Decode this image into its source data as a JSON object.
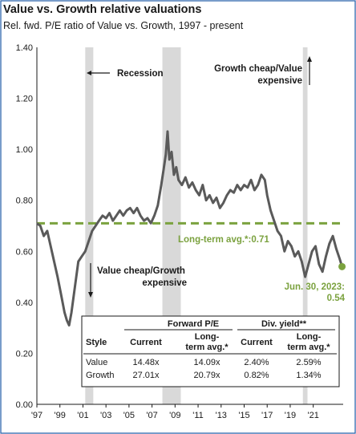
{
  "chart_data": {
    "type": "line",
    "title": "Value vs. Growth relative valuations",
    "subtitle": "Rel. fwd. P/E ratio of Value vs. Growth, 1997 - present",
    "ylim": [
      0,
      1.4
    ],
    "yticks": [
      "0.00",
      "0.20",
      "0.40",
      "0.60",
      "0.80",
      "1.00",
      "1.20",
      "1.40"
    ],
    "xlim": [
      1997,
      2023.6
    ],
    "xticks": [
      {
        "year": 1997,
        "label": "'97"
      },
      {
        "year": 1999,
        "label": "'99"
      },
      {
        "year": 2001,
        "label": "'01"
      },
      {
        "year": 2003,
        "label": "'03"
      },
      {
        "year": 2005,
        "label": "'05"
      },
      {
        "year": 2007,
        "label": "'07"
      },
      {
        "year": 2009,
        "label": "'09"
      },
      {
        "year": 2011,
        "label": "'11"
      },
      {
        "year": 2013,
        "label": "'13"
      },
      {
        "year": 2015,
        "label": "'15"
      },
      {
        "year": 2017,
        "label": "'17"
      },
      {
        "year": 2019,
        "label": "'19"
      },
      {
        "year": 2021,
        "label": "'21"
      }
    ],
    "recessions": [
      [
        2001.2,
        2001.9
      ],
      [
        2007.9,
        2009.5
      ],
      [
        2020.1,
        2020.5
      ]
    ],
    "series": [
      {
        "values": [
          [
            1997.0,
            0.71
          ],
          [
            1997.3,
            0.7
          ],
          [
            1997.6,
            0.66
          ],
          [
            1997.9,
            0.68
          ],
          [
            1998.2,
            0.62
          ],
          [
            1998.5,
            0.56
          ],
          [
            1998.8,
            0.5
          ],
          [
            1999.1,
            0.43
          ],
          [
            1999.4,
            0.36
          ],
          [
            1999.6,
            0.33
          ],
          [
            1999.8,
            0.31
          ],
          [
            2000.0,
            0.36
          ],
          [
            2000.3,
            0.46
          ],
          [
            2000.6,
            0.56
          ],
          [
            2000.9,
            0.58
          ],
          [
            2001.2,
            0.6
          ],
          [
            2001.5,
            0.64
          ],
          [
            2001.8,
            0.68
          ],
          [
            2002.1,
            0.7
          ],
          [
            2002.4,
            0.72
          ],
          [
            2002.7,
            0.74
          ],
          [
            2003.0,
            0.73
          ],
          [
            2003.3,
            0.75
          ],
          [
            2003.6,
            0.72
          ],
          [
            2003.9,
            0.74
          ],
          [
            2004.2,
            0.76
          ],
          [
            2004.5,
            0.74
          ],
          [
            2004.8,
            0.76
          ],
          [
            2005.1,
            0.77
          ],
          [
            2005.4,
            0.75
          ],
          [
            2005.7,
            0.77
          ],
          [
            2006.0,
            0.74
          ],
          [
            2006.3,
            0.72
          ],
          [
            2006.6,
            0.73
          ],
          [
            2006.9,
            0.71
          ],
          [
            2007.2,
            0.74
          ],
          [
            2007.5,
            0.78
          ],
          [
            2007.8,
            0.86
          ],
          [
            2008.0,
            0.92
          ],
          [
            2008.2,
            0.98
          ],
          [
            2008.35,
            1.07
          ],
          [
            2008.5,
            0.96
          ],
          [
            2008.7,
            0.99
          ],
          [
            2008.9,
            0.9
          ],
          [
            2009.1,
            0.93
          ],
          [
            2009.3,
            0.88
          ],
          [
            2009.6,
            0.86
          ],
          [
            2009.9,
            0.89
          ],
          [
            2010.2,
            0.85
          ],
          [
            2010.5,
            0.87
          ],
          [
            2010.8,
            0.84
          ],
          [
            2011.1,
            0.82
          ],
          [
            2011.4,
            0.86
          ],
          [
            2011.7,
            0.8
          ],
          [
            2012.0,
            0.82
          ],
          [
            2012.3,
            0.79
          ],
          [
            2012.6,
            0.81
          ],
          [
            2012.9,
            0.77
          ],
          [
            2013.2,
            0.79
          ],
          [
            2013.5,
            0.82
          ],
          [
            2013.8,
            0.84
          ],
          [
            2014.1,
            0.83
          ],
          [
            2014.4,
            0.86
          ],
          [
            2014.7,
            0.84
          ],
          [
            2015.0,
            0.86
          ],
          [
            2015.3,
            0.85
          ],
          [
            2015.6,
            0.88
          ],
          [
            2015.9,
            0.84
          ],
          [
            2016.2,
            0.86
          ],
          [
            2016.5,
            0.9
          ],
          [
            2016.8,
            0.88
          ],
          [
            2017.0,
            0.82
          ],
          [
            2017.3,
            0.76
          ],
          [
            2017.6,
            0.72
          ],
          [
            2017.9,
            0.68
          ],
          [
            2018.2,
            0.66
          ],
          [
            2018.5,
            0.6
          ],
          [
            2018.8,
            0.64
          ],
          [
            2019.1,
            0.62
          ],
          [
            2019.4,
            0.58
          ],
          [
            2019.7,
            0.6
          ],
          [
            2020.0,
            0.56
          ],
          [
            2020.3,
            0.5
          ],
          [
            2020.6,
            0.55
          ],
          [
            2020.9,
            0.6
          ],
          [
            2021.2,
            0.62
          ],
          [
            2021.5,
            0.55
          ],
          [
            2021.8,
            0.52
          ],
          [
            2022.1,
            0.58
          ],
          [
            2022.4,
            0.63
          ],
          [
            2022.7,
            0.66
          ],
          [
            2023.0,
            0.61
          ],
          [
            2023.3,
            0.57
          ],
          [
            2023.5,
            0.54
          ]
        ]
      }
    ],
    "long_term_avg": {
      "value": 0.71,
      "label": "Long-term avg.*:0.71"
    },
    "latest_point": {
      "x": 2023.5,
      "y": 0.54,
      "label_line1": "Jun. 30, 2023:",
      "label_line2": "0.54"
    },
    "annotations": {
      "recession": "Recession",
      "growth_cheap_1": "Growth cheap/Value",
      "growth_cheap_2": "expensive",
      "value_cheap_1": "Value cheap/Growth",
      "value_cheap_2": "expensive"
    },
    "table": {
      "group_headers": [
        "Forward P/E",
        "Div. yield**"
      ],
      "columns": [
        "Style",
        "Current",
        "Long-term avg.*",
        "Current",
        "Long-term avg.*"
      ],
      "col_header_line1": [
        "Style",
        "Current",
        "Long-",
        "Current",
        "Long-"
      ],
      "col_header_line2": [
        "",
        "",
        "term avg.*",
        "",
        "term avg.*"
      ],
      "rows": [
        [
          "Value",
          "14.48x",
          "14.09x",
          "2.40%",
          "2.59%"
        ],
        [
          "Growth",
          "27.01x",
          "20.79x",
          "0.82%",
          "1.34%"
        ]
      ]
    },
    "colors": {
      "line": "#5a5a5a",
      "average": "#7ba23f",
      "recession": "#d9d9d9",
      "frame": "#1f5aa6"
    }
  }
}
